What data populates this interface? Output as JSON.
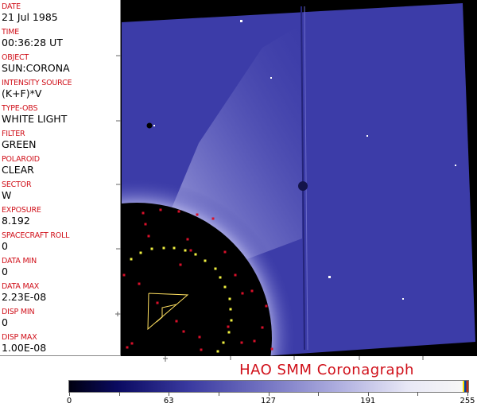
{
  "fields": [
    {
      "label": "DATE",
      "value": "21 Jul 1985"
    },
    {
      "label": "TIME",
      "value": "00:36:28 UT"
    },
    {
      "label": "OBJECT",
      "value": "SUN:CORONA"
    },
    {
      "label": "INTENSITY SOURCE",
      "value": "(K+F)*V"
    },
    {
      "label": "TYPE-OBS",
      "value": "WHITE LIGHT"
    },
    {
      "label": "FILTER",
      "value": "GREEN"
    },
    {
      "label": "POLAROID",
      "value": "CLEAR"
    },
    {
      "label": "SECTOR",
      "value": "W"
    },
    {
      "label": "EXPOSURE",
      "value": "8.192"
    },
    {
      "label": "SPACECRAFT ROLL",
      "value": "0"
    },
    {
      "label": "DATA MIN",
      "value": "0"
    },
    {
      "label": "DATA MAX",
      "value": "2.23E-08"
    },
    {
      "label": "DISP MIN",
      "value": "0"
    },
    {
      "label": "DISP MAX",
      "value": "1.00E-08"
    }
  ],
  "title": "HAO  SMM Coronagraph",
  "colorbar": {
    "ticks": [
      "0",
      "63",
      "127",
      "191",
      "255"
    ],
    "min": 0,
    "max": 255
  },
  "colors": {
    "label": "#d0101a",
    "image_blue": "#3c3ca8",
    "occulter": "#000000"
  }
}
